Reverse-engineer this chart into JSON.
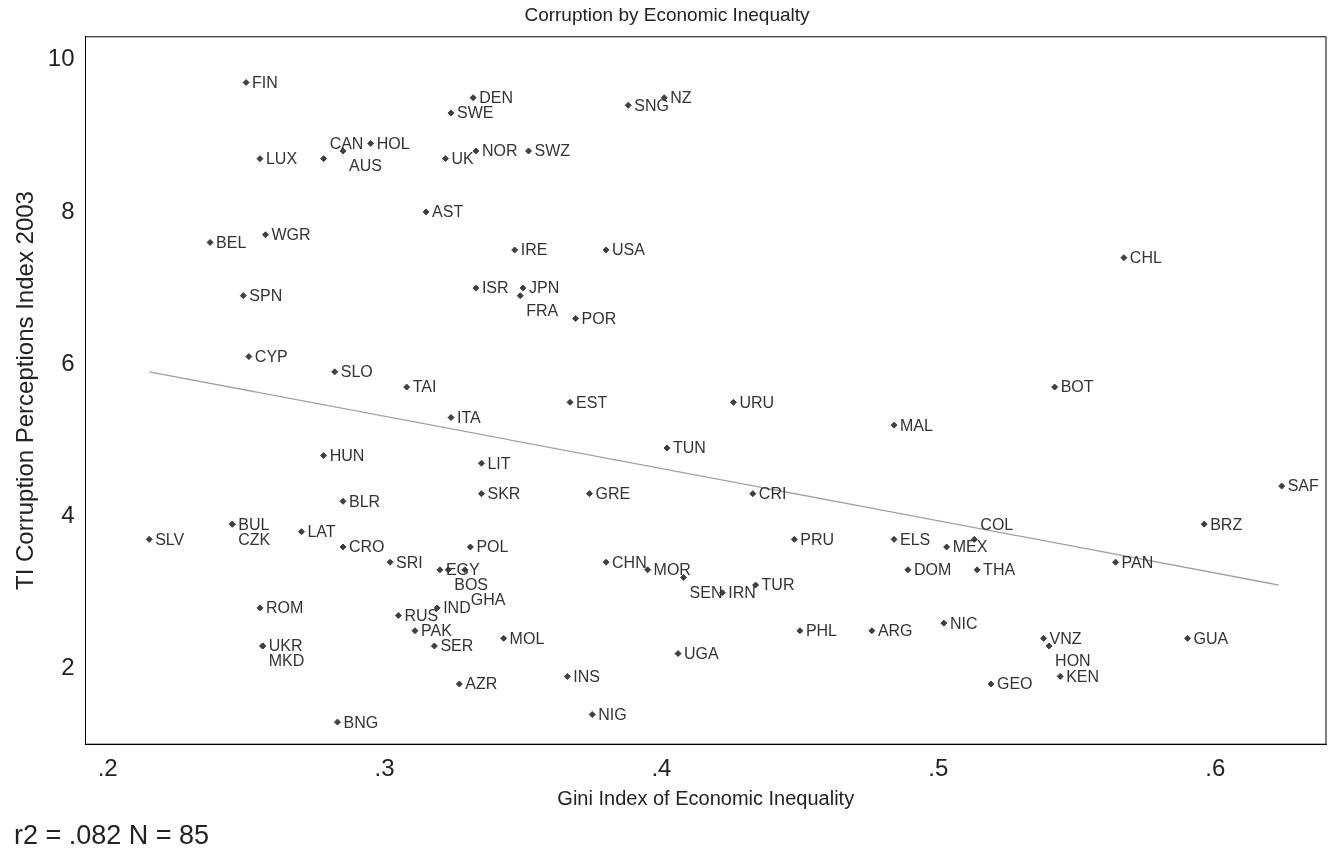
{
  "chart_data": {
    "type": "scatter",
    "title": "Corruption by Economic Inequalty",
    "xlabel": "Gini Index of Economic Inequality",
    "ylabel": "TI Corruption Perceptions Index 2003",
    "annotations": [
      "r2 = .082 N = 85"
    ],
    "xlim": [
      0.192,
      0.64
    ],
    "ylim": [
      1.01,
      10.3
    ],
    "xticks": [
      {
        "value": 0.2,
        "label": ".2"
      },
      {
        "value": 0.3,
        "label": ".3"
      },
      {
        "value": 0.4,
        "label": ".4"
      },
      {
        "value": 0.5,
        "label": ".5"
      },
      {
        "value": 0.6,
        "label": ".6"
      }
    ],
    "yticks": [
      2,
      4,
      6,
      8,
      10
    ],
    "grid": false,
    "legend": false,
    "marker": "diamond",
    "series": [
      {
        "color": "#404040",
        "x": [
          0.25,
          0.332,
          0.324,
          0.401,
          0.388,
          0.295,
          0.285,
          0.255,
          0.278,
          0.322,
          0.333,
          0.352,
          0.315,
          0.237,
          0.257,
          0.347,
          0.38,
          0.567,
          0.249,
          0.333,
          0.35,
          0.349,
          0.369,
          0.251,
          0.282,
          0.308,
          0.542,
          0.367,
          0.426,
          0.324,
          0.484,
          0.402,
          0.278,
          0.335,
          0.624,
          0.335,
          0.374,
          0.433,
          0.285,
          0.596,
          0.245,
          0.245,
          0.27,
          0.215,
          0.285,
          0.331,
          0.448,
          0.484,
          0.503,
          0.513,
          0.302,
          0.32,
          0.323,
          0.329,
          0.38,
          0.395,
          0.408,
          0.422,
          0.434,
          0.489,
          0.514,
          0.564,
          0.255,
          0.305,
          0.319,
          0.311,
          0.318,
          0.343,
          0.256,
          0.256,
          0.45,
          0.476,
          0.502,
          0.538,
          0.54,
          0.59,
          0.406,
          0.519,
          0.544,
          0.366,
          0.327,
          0.375,
          0.283
        ],
        "values": [
          9.7,
          9.5,
          9.3,
          9.5,
          9.4,
          8.9,
          8.8,
          8.7,
          8.7,
          8.7,
          8.8,
          8.8,
          8.0,
          7.6,
          7.7,
          7.5,
          7.5,
          7.4,
          6.9,
          7.0,
          7.0,
          6.9,
          6.6,
          6.1,
          5.9,
          5.7,
          5.7,
          5.5,
          5.5,
          5.3,
          5.2,
          4.9,
          4.8,
          4.7,
          4.4,
          4.3,
          4.3,
          4.3,
          4.2,
          3.9,
          3.9,
          3.9,
          3.8,
          3.7,
          3.6,
          3.6,
          3.7,
          3.7,
          3.6,
          3.7,
          3.4,
          3.3,
          3.3,
          3.3,
          3.4,
          3.3,
          3.2,
          3.0,
          3.1,
          3.3,
          3.3,
          3.4,
          2.8,
          2.7,
          2.8,
          2.5,
          2.3,
          2.4,
          2.3,
          2.3,
          2.5,
          2.5,
          2.6,
          2.4,
          2.3,
          2.4,
          2.2,
          1.8,
          1.9,
          1.9,
          1.8,
          1.4,
          1.3
        ],
        "value_labels": [
          "FIN",
          "DEN",
          "SWE",
          "NZ",
          "SNG",
          "HOL",
          "AUS",
          "LUX",
          "CAN",
          "UK",
          "NOR",
          "SWZ",
          "AST",
          "BEL",
          "WGR",
          "IRE",
          "USA",
          "CHL",
          "SPN",
          "ISR",
          "JPN",
          "FRA",
          "POR",
          "CYP",
          "SLO",
          "TAI",
          "BOT",
          "EST",
          "URU",
          "ITA",
          "MAL",
          "TUN",
          "HUN",
          "LIT",
          "SAF",
          "SKR",
          "GRE",
          "CRI",
          "BLR",
          "BRZ",
          "BUL",
          "CZK",
          "LAT",
          "SLV",
          "CRO",
          "POL",
          "PRU",
          "ELS",
          "MEX",
          "COL",
          "SRI",
          "EGY",
          "BOS",
          "GHA",
          "CHN",
          "MOR",
          "SEN",
          "IRN",
          "TUR",
          "DOM",
          "THA",
          "PAN",
          "ROM",
          "RUS",
          "IND",
          "PAK",
          "SER",
          "MOL",
          "UKR",
          "MKD",
          "PHL",
          "ARG",
          "NIC",
          "VNZ",
          "HON",
          "GUA",
          "UGA",
          "GEO",
          "KEN",
          "INS",
          "AZR",
          "NIG",
          "BNG"
        ]
      },
      {
        "type": "line",
        "color": "#a0a0a0",
        "marker": "none",
        "x": [
          0.215,
          0.623
        ],
        "values": [
          5.9,
          3.1
        ]
      }
    ]
  }
}
